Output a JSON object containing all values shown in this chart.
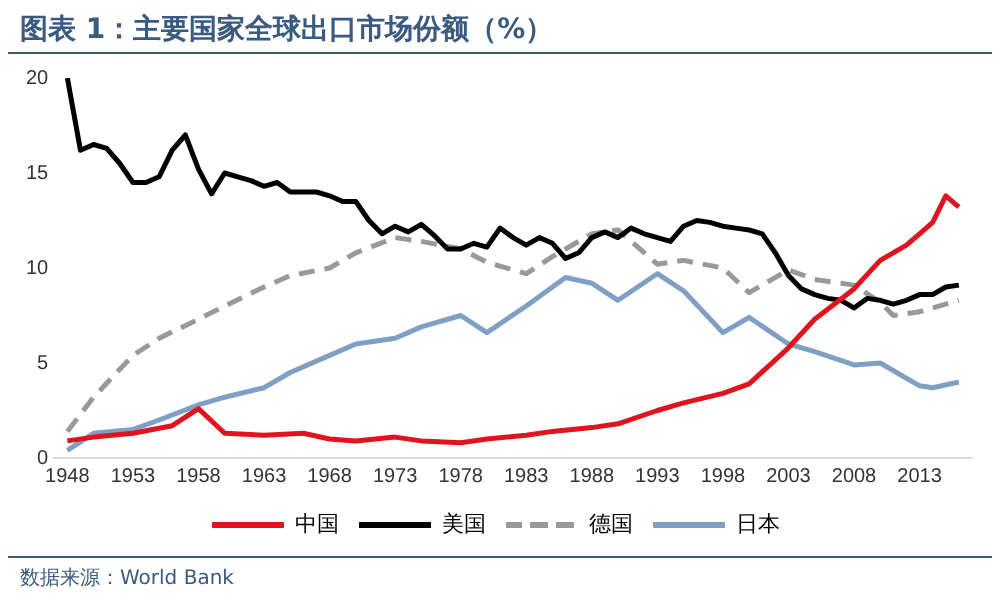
{
  "chart_data": {
    "type": "line",
    "title": "图表 1：主要国家全球出口市场份额（%）",
    "xlim": [
      1947,
      2017
    ],
    "xticks": [
      1948,
      1953,
      1958,
      1963,
      1968,
      1973,
      1978,
      1983,
      1988,
      1993,
      1998,
      2003,
      2008,
      2013
    ],
    "ylim": [
      0,
      20
    ],
    "yticks": [
      0,
      5,
      10,
      15,
      20
    ],
    "grid": false,
    "legend": "bottom",
    "marker": "none",
    "annotations": [
      "数据来源：World Bank"
    ],
    "series": [
      {
        "name": "中国",
        "color": "#e0141e",
        "line_style": "solid",
        "x": [
          1948,
          1950,
          1953,
          1956,
          1958,
          1960,
          1963,
          1966,
          1968,
          1970,
          1973,
          1975,
          1978,
          1980,
          1983,
          1985,
          1988,
          1990,
          1993,
          1995,
          1998,
          2000,
          2003,
          2005,
          2008,
          2010,
          2012,
          2013,
          2014,
          2015,
          2016
        ],
        "values": [
          0.9,
          1.1,
          1.3,
          1.7,
          2.6,
          1.3,
          1.2,
          1.3,
          1.0,
          0.9,
          1.1,
          0.9,
          0.8,
          1.0,
          1.2,
          1.4,
          1.6,
          1.8,
          2.5,
          2.9,
          3.4,
          3.9,
          5.8,
          7.3,
          8.9,
          10.4,
          11.2,
          11.8,
          12.4,
          13.8,
          13.2
        ]
      },
      {
        "name": "美国",
        "color": "#000000",
        "line_style": "solid",
        "x": [
          1948,
          1949,
          1950,
          1951,
          1952,
          1953,
          1954,
          1955,
          1956,
          1957,
          1958,
          1959,
          1960,
          1961,
          1962,
          1963,
          1964,
          1965,
          1966,
          1967,
          1968,
          1969,
          1970,
          1971,
          1972,
          1973,
          1974,
          1975,
          1976,
          1977,
          1978,
          1979,
          1980,
          1981,
          1982,
          1983,
          1984,
          1985,
          1986,
          1987,
          1988,
          1989,
          1990,
          1991,
          1992,
          1993,
          1994,
          1995,
          1996,
          1997,
          1998,
          1999,
          2000,
          2001,
          2002,
          2003,
          2004,
          2005,
          2006,
          2007,
          2008,
          2009,
          2010,
          2011,
          2012,
          2013,
          2014,
          2015,
          2016
        ],
        "values": [
          20,
          16.2,
          16.5,
          16.3,
          15.5,
          14.5,
          14.5,
          14.8,
          16.2,
          17,
          15.2,
          13.9,
          15,
          14.8,
          14.6,
          14.3,
          14.5,
          14,
          14,
          14,
          13.8,
          13.5,
          13.5,
          12.5,
          11.8,
          12.2,
          11.9,
          12.3,
          11.7,
          11,
          11,
          11.3,
          11.1,
          12.1,
          11.6,
          11.2,
          11.6,
          11.3,
          10.5,
          10.8,
          11.6,
          11.9,
          11.6,
          12.1,
          11.8,
          11.6,
          11.4,
          12.2,
          12.5,
          12.4,
          12.2,
          12.1,
          12.0,
          11.8,
          10.8,
          9.6,
          8.9,
          8.6,
          8.4,
          8.3,
          7.9,
          8.4,
          8.3,
          8.1,
          8.3,
          8.6,
          8.6,
          9.0,
          9.1
        ]
      },
      {
        "name": "德国",
        "color": "#999999",
        "line_style": "dashed",
        "x": [
          1948,
          1950,
          1953,
          1955,
          1958,
          1960,
          1963,
          1965,
          1968,
          1970,
          1973,
          1975,
          1978,
          1980,
          1983,
          1985,
          1988,
          1990,
          1993,
          1995,
          1998,
          2000,
          2003,
          2005,
          2008,
          2010,
          2011,
          2013,
          2016
        ],
        "values": [
          1.4,
          3.2,
          5.4,
          6.3,
          7.3,
          8.0,
          9.0,
          9.6,
          10.0,
          10.8,
          11.6,
          11.4,
          11.0,
          10.3,
          9.7,
          10.6,
          11.8,
          12.0,
          10.2,
          10.4,
          10.0,
          8.7,
          9.9,
          9.4,
          9.1,
          8.2,
          7.5,
          7.7,
          8.3
        ]
      },
      {
        "name": "日本",
        "color": "#7f9fc4",
        "line_style": "solid",
        "x": [
          1948,
          1950,
          1953,
          1955,
          1958,
          1960,
          1963,
          1965,
          1968,
          1970,
          1973,
          1975,
          1978,
          1980,
          1983,
          1985,
          1986,
          1988,
          1990,
          1993,
          1995,
          1998,
          2000,
          2003,
          2005,
          2008,
          2010,
          2013,
          2014,
          2016
        ],
        "values": [
          0.4,
          1.3,
          1.5,
          2.0,
          2.8,
          3.2,
          3.7,
          4.5,
          5.4,
          6.0,
          6.3,
          6.9,
          7.5,
          6.6,
          8.0,
          9.0,
          9.5,
          9.2,
          8.3,
          9.7,
          8.8,
          6.6,
          7.4,
          6.0,
          5.6,
          4.9,
          5.0,
          3.8,
          3.7,
          4.0
        ]
      }
    ]
  }
}
